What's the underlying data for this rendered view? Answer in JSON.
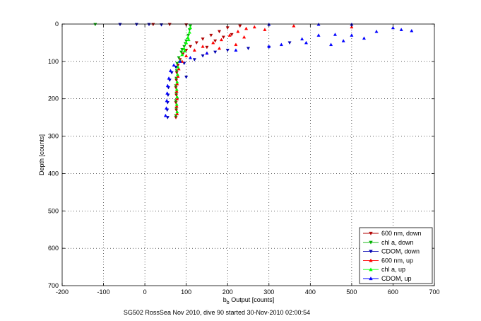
{
  "chart_data": {
    "type": "scatter",
    "xlabel_main": "b",
    "xlabel_sub": "b",
    "xlabel_rest": " Output [counts]",
    "ylabel": "Depth [counts]",
    "caption": "SG502 RossSea Nov 2010, dive 90 started 30-Nov-2010 02:00:54",
    "xlim": [
      -200,
      700
    ],
    "ylim": [
      0,
      700
    ],
    "y_reversed": true,
    "grid": true,
    "legend_position": "bottom-right",
    "xticks": [
      "-200",
      "-100",
      "0",
      "100",
      "200",
      "300",
      "400",
      "500",
      "600",
      "700"
    ],
    "yticks": [
      "0",
      "100",
      "200",
      "300",
      "400",
      "500",
      "600",
      "700"
    ],
    "series": [
      {
        "name": "600 nm, down",
        "color": "#b00000",
        "marker": "triangle-down",
        "points": [
          [
            75,
            250
          ],
          [
            76,
            230
          ],
          [
            75,
            210
          ],
          [
            76,
            190
          ],
          [
            75,
            170
          ],
          [
            76,
            150
          ],
          [
            77,
            130
          ],
          [
            80,
            110
          ],
          [
            85,
            95
          ],
          [
            92,
            80
          ],
          [
            100,
            70
          ],
          [
            110,
            60
          ],
          [
            125,
            50
          ],
          [
            140,
            40
          ],
          [
            160,
            30
          ],
          [
            180,
            20
          ],
          [
            200,
            10
          ],
          [
            230,
            5
          ],
          [
            150,
            62
          ],
          [
            170,
            45
          ],
          [
            190,
            35
          ],
          [
            210,
            28
          ],
          [
            100,
            2
          ],
          [
            60,
            1
          ],
          [
            20,
            1
          ]
        ]
      },
      {
        "name": "chl a, down",
        "color": "#00b000",
        "marker": "triangle-down",
        "points": [
          [
            75,
            245
          ],
          [
            76,
            225
          ],
          [
            75,
            205
          ],
          [
            76,
            185
          ],
          [
            75,
            165
          ],
          [
            76,
            145
          ],
          [
            77,
            125
          ],
          [
            78,
            105
          ],
          [
            82,
            90
          ],
          [
            88,
            75
          ],
          [
            95,
            60
          ],
          [
            100,
            45
          ],
          [
            105,
            30
          ],
          [
            108,
            15
          ],
          [
            110,
            5
          ],
          [
            -120,
            1
          ],
          [
            90,
            68
          ],
          [
            98,
            52
          ]
        ]
      },
      {
        "name": "CDOM, down",
        "color": "#0000b0",
        "marker": "triangle-down",
        "points": [
          [
            55,
            250
          ],
          [
            54,
            230
          ],
          [
            55,
            210
          ],
          [
            56,
            190
          ],
          [
            57,
            170
          ],
          [
            60,
            150
          ],
          [
            65,
            130
          ],
          [
            75,
            115
          ],
          [
            95,
            105
          ],
          [
            120,
            95
          ],
          [
            140,
            85
          ],
          [
            170,
            75
          ],
          [
            200,
            70
          ],
          [
            250,
            65
          ],
          [
            300,
            62
          ],
          [
            350,
            50
          ],
          [
            100,
            142
          ],
          [
            -60,
            1
          ],
          [
            -20,
            1
          ],
          [
            10,
            1
          ],
          [
            40,
            2
          ]
        ]
      },
      {
        "name": "600 nm, up",
        "color": "#ff0000",
        "marker": "triangle-up",
        "points": [
          [
            78,
            240
          ],
          [
            77,
            220
          ],
          [
            78,
            200
          ],
          [
            77,
            180
          ],
          [
            78,
            160
          ],
          [
            80,
            140
          ],
          [
            82,
            120
          ],
          [
            90,
            100
          ],
          [
            100,
            85
          ],
          [
            120,
            70
          ],
          [
            140,
            60
          ],
          [
            165,
            50
          ],
          [
            185,
            42
          ],
          [
            205,
            30
          ],
          [
            225,
            20
          ],
          [
            245,
            12
          ],
          [
            265,
            8
          ],
          [
            290,
            15
          ],
          [
            220,
            55
          ],
          [
            180,
            65
          ],
          [
            150,
            78
          ],
          [
            360,
            5
          ],
          [
            500,
            8
          ],
          [
            240,
            35
          ]
        ]
      },
      {
        "name": "chl a, up",
        "color": "#00ff00",
        "marker": "triangle-up",
        "points": [
          [
            78,
            235
          ],
          [
            77,
            215
          ],
          [
            78,
            195
          ],
          [
            77,
            175
          ],
          [
            78,
            155
          ],
          [
            79,
            135
          ],
          [
            80,
            115
          ],
          [
            85,
            98
          ],
          [
            90,
            82
          ],
          [
            95,
            66
          ],
          [
            100,
            50
          ],
          [
            104,
            36
          ],
          [
            108,
            22
          ],
          [
            110,
            10
          ],
          [
            106,
            42
          ],
          [
            96,
            72
          ]
        ]
      },
      {
        "name": "CDOM, up",
        "color": "#0000ff",
        "marker": "triangle-up",
        "points": [
          [
            50,
            245
          ],
          [
            52,
            225
          ],
          [
            53,
            205
          ],
          [
            54,
            185
          ],
          [
            55,
            165
          ],
          [
            58,
            145
          ],
          [
            62,
            125
          ],
          [
            70,
            110
          ],
          [
            85,
            100
          ],
          [
            110,
            90
          ],
          [
            150,
            78
          ],
          [
            220,
            70
          ],
          [
            300,
            60
          ],
          [
            330,
            55
          ],
          [
            380,
            40
          ],
          [
            420,
            30
          ],
          [
            460,
            28
          ],
          [
            480,
            45
          ],
          [
            500,
            30
          ],
          [
            530,
            38
          ],
          [
            560,
            20
          ],
          [
            600,
            10
          ],
          [
            620,
            15
          ],
          [
            645,
            18
          ],
          [
            450,
            55
          ],
          [
            390,
            50
          ],
          [
            420,
            1
          ],
          [
            500,
            1
          ],
          [
            300,
            1
          ]
        ]
      }
    ]
  }
}
